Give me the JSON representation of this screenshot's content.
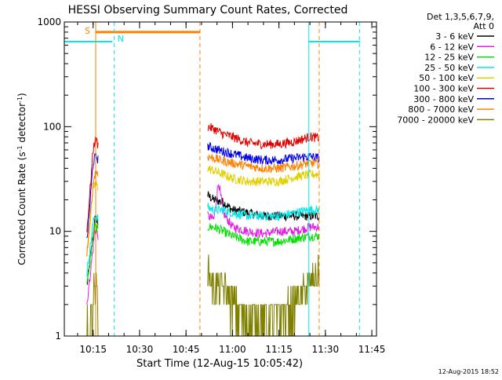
{
  "chart_data": {
    "type": "line",
    "title": "HESSI Observing Summary Count Rates, Corrected",
    "xlabel": "Start Time (12-Aug-15 10:05:42)",
    "ylabel": "Corrected Count Rate (s⁻¹ detector⁻¹)",
    "y_scale": "log",
    "ylim": [
      1,
      1000
    ],
    "xlim": [
      "10:05:42",
      "11:46:30"
    ],
    "x_ticks": [
      "10:15",
      "10:30",
      "10:45",
      "11:00",
      "11:15",
      "11:30",
      "11:45"
    ],
    "y_ticks": [
      "1",
      "10",
      "100",
      "1000"
    ],
    "grid": false,
    "legend": {
      "placement": "right",
      "header": [
        "Det 1,3,5,6,7,9,",
        "Att 0"
      ],
      "entries": [
        {
          "label": "3 - 6 keV",
          "color": "#000000"
        },
        {
          "label": "6 - 12 keV",
          "color": "#e020e0"
        },
        {
          "label": "12 - 25 keV",
          "color": "#00e000"
        },
        {
          "label": "25 - 50 keV",
          "color": "#00e8e8"
        },
        {
          "label": "50 - 100 keV",
          "color": "#e0d000"
        },
        {
          "label": "100 - 300 keV",
          "color": "#e00000"
        },
        {
          "label": "300 - 800 keV",
          "color": "#0000e8"
        },
        {
          "label": "800 - 7000 keV",
          "color": "#ff8000"
        },
        {
          "label": "7000 - 20000 keV",
          "color": "#808000"
        }
      ]
    },
    "series": [
      {
        "name": "3 - 6 keV",
        "segments": [
          {
            "x": [
              "10:13:00",
              "10:15:00",
              "10:15:30",
              "10:16:00",
              "10:16:40"
            ],
            "y": [
              3,
              9,
              13,
              13,
              12
            ]
          },
          {
            "x": [
              "10:52:00",
              "10:54:00",
              "10:57:00",
              "11:00:00",
              "11:05:00",
              "11:10:00",
              "11:15:00",
              "11:20:00",
              "11:25:00",
              "11:28:00"
            ],
            "y": [
              22,
              20,
              19,
              16,
              15,
              14,
              14,
              14,
              14,
              14
            ]
          }
        ]
      },
      {
        "name": "6 - 12 keV",
        "segments": [
          {
            "x": [
              "10:13:00",
              "10:15:00",
              "10:15:30",
              "10:16:00",
              "10:16:40"
            ],
            "y": [
              2,
              7,
              10,
              10,
              9
            ]
          },
          {
            "x": [
              "10:52:00",
              "10:54:00",
              "10:55:30",
              "10:57:00",
              "11:00:00",
              "11:05:00",
              "11:10:00",
              "11:15:00",
              "11:20:00",
              "11:25:00",
              "11:28:00"
            ],
            "y": [
              14,
              13,
              30,
              15,
              11,
              10,
              9.5,
              10,
              10,
              11,
              11
            ]
          }
        ]
      },
      {
        "name": "12 - 25 keV",
        "segments": [
          {
            "x": [
              "10:13:00",
              "10:15:00",
              "10:15:30",
              "10:16:00",
              "10:16:40"
            ],
            "y": [
              3,
              9,
              11,
              11,
              10
            ]
          },
          {
            "x": [
              "10:52:00",
              "10:54:00",
              "10:57:00",
              "11:00:00",
              "11:05:00",
              "11:10:00",
              "11:15:00",
              "11:20:00",
              "11:25:00",
              "11:28:00"
            ],
            "y": [
              11,
              11,
              10,
              9,
              8,
              8,
              8,
              8.5,
              9,
              9
            ]
          }
        ]
      },
      {
        "name": "25 - 50 keV",
        "segments": [
          {
            "x": [
              "10:13:00",
              "10:15:00",
              "10:15:30",
              "10:16:00",
              "10:16:40"
            ],
            "y": [
              4,
              12,
              14,
              14,
              13
            ]
          },
          {
            "x": [
              "10:52:00",
              "10:54:00",
              "10:57:00",
              "11:00:00",
              "11:05:00",
              "11:10:00",
              "11:15:00",
              "11:20:00",
              "11:25:00",
              "11:28:00"
            ],
            "y": [
              17,
              16,
              16,
              15,
              14,
              14,
              14,
              15,
              16,
              16
            ]
          }
        ]
      },
      {
        "name": "50 - 100 keV",
        "segments": [
          {
            "x": [
              "10:13:00",
              "10:15:00",
              "10:15:30",
              "10:16:00",
              "10:16:40"
            ],
            "y": [
              6,
              25,
              28,
              28,
              26
            ]
          },
          {
            "x": [
              "10:52:00",
              "10:54:00",
              "10:57:00",
              "11:00:00",
              "11:05:00",
              "11:10:00",
              "11:15:00",
              "11:20:00",
              "11:25:00",
              "11:28:00"
            ],
            "y": [
              40,
              38,
              35,
              32,
              30,
              30,
              30,
              33,
              35,
              35
            ]
          }
        ]
      },
      {
        "name": "100 - 300 keV",
        "segments": [
          {
            "x": [
              "10:13:00",
              "10:15:00",
              "10:15:30",
              "10:16:00",
              "10:16:40"
            ],
            "y": [
              10,
              60,
              72,
              75,
              65
            ]
          },
          {
            "x": [
              "10:52:00",
              "10:54:00",
              "10:57:00",
              "11:00:00",
              "11:05:00",
              "11:10:00",
              "11:15:00",
              "11:20:00",
              "11:25:00",
              "11:28:00"
            ],
            "y": [
              100,
              95,
              85,
              80,
              70,
              68,
              68,
              72,
              80,
              78
            ]
          }
        ]
      },
      {
        "name": "300 - 800 keV",
        "segments": [
          {
            "x": [
              "10:13:00",
              "10:15:00",
              "10:15:30",
              "10:16:00",
              "10:16:40"
            ],
            "y": [
              8,
              45,
              50,
              52,
              48
            ]
          },
          {
            "x": [
              "10:52:00",
              "10:54:00",
              "10:57:00",
              "11:00:00",
              "11:05:00",
              "11:10:00",
              "11:15:00",
              "11:20:00",
              "11:25:00",
              "11:28:00"
            ],
            "y": [
              65,
              62,
              58,
              55,
              50,
              48,
              48,
              50,
              52,
              50
            ]
          }
        ]
      },
      {
        "name": "800 - 7000 keV",
        "segments": [
          {
            "x": [
              "10:13:00",
              "10:15:00",
              "10:15:30",
              "10:16:00",
              "10:16:40"
            ],
            "y": [
              6,
              28,
              35,
              38,
              34
            ]
          },
          {
            "x": [
              "10:52:00",
              "10:54:00",
              "10:57:00",
              "11:00:00",
              "11:05:00",
              "11:10:00",
              "11:15:00",
              "11:20:00",
              "11:25:00",
              "11:28:00"
            ],
            "y": [
              52,
              50,
              47,
              45,
              42,
              40,
              40,
              42,
              45,
              44
            ]
          }
        ]
      },
      {
        "name": "7000 - 20000 keV",
        "segments": [
          {
            "x": [
              "10:13:00",
              "10:15:00",
              "10:15:30",
              "10:16:00",
              "10:16:40"
            ],
            "y": [
              1,
              2,
              3,
              3,
              2
            ]
          },
          {
            "x": [
              "10:52:00",
              "10:54:00",
              "10:57:00",
              "11:00:00",
              "11:05:00",
              "11:10:00",
              "11:15:00",
              "11:20:00",
              "11:25:00",
              "11:28:00"
            ],
            "y": [
              4,
              3,
              3,
              2,
              1.5,
              1.5,
              1.5,
              2,
              3,
              4
            ]
          }
        ]
      }
    ],
    "annotations": {
      "saa_label": "S",
      "night_label": "N",
      "night_intervals": [
        [
          "10:05:42",
          "10:21:10"
        ],
        [
          "11:24:40",
          "11:41:10"
        ]
      ],
      "night_level": 650,
      "night_color": "#00e8e8",
      "saa_intervals": [
        [
          "10:15:50",
          "10:49:30"
        ]
      ],
      "saa_level": 800,
      "saa_color": "#ff8000",
      "cyan_dashed_times": [
        "10:21:50",
        "11:41:00"
      ],
      "orange_dashed_times": [
        "10:49:30",
        "11:28:00"
      ]
    },
    "footer_timestamp": "12-Aug-2015 18:52"
  }
}
